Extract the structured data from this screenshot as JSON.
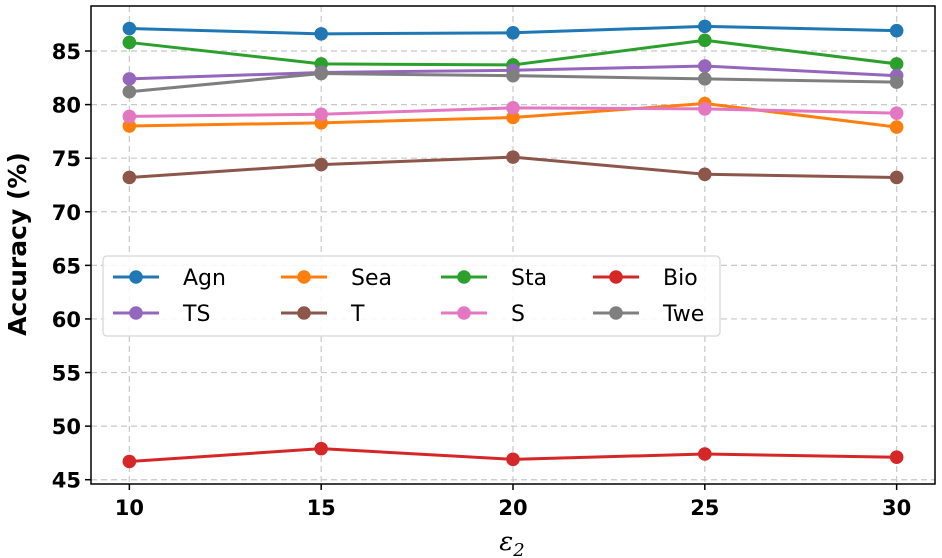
{
  "chart_data": {
    "type": "line",
    "xlabel_main": "ε",
    "xlabel_sub": "2",
    "ylabel": "Accuracy (%)",
    "x": [
      10,
      15,
      20,
      25,
      30
    ],
    "xticks": [
      "10",
      "15",
      "20",
      "25",
      "30"
    ],
    "yticks": [
      "45",
      "50",
      "55",
      "60",
      "65",
      "70",
      "75",
      "80",
      "85"
    ],
    "xlim": [
      9,
      31
    ],
    "ylim": [
      44.6,
      89.2
    ],
    "grid": true,
    "legend_position": "center-left",
    "series": [
      {
        "name": "Agn",
        "color": "#1f77b4",
        "values": [
          87.1,
          86.6,
          86.7,
          87.3,
          86.9
        ]
      },
      {
        "name": "Sea",
        "color": "#ff7f0e",
        "values": [
          78.0,
          78.3,
          78.8,
          80.1,
          77.9
        ]
      },
      {
        "name": "Sta",
        "color": "#2ca02c",
        "values": [
          85.8,
          83.8,
          83.7,
          86.0,
          83.8
        ]
      },
      {
        "name": "Bio",
        "color": "#d62728",
        "values": [
          46.7,
          47.9,
          46.9,
          47.4,
          47.1
        ]
      },
      {
        "name": "TS",
        "color": "#9467bd",
        "values": [
          82.4,
          83.0,
          83.2,
          83.6,
          82.7
        ]
      },
      {
        "name": "T",
        "color": "#8c564b",
        "values": [
          73.2,
          74.4,
          75.1,
          73.5,
          73.2
        ]
      },
      {
        "name": "S",
        "color": "#e377c2",
        "values": [
          78.9,
          79.1,
          79.7,
          79.6,
          79.2
        ]
      },
      {
        "name": "Twe",
        "color": "#7f7f7f",
        "values": [
          81.2,
          82.9,
          82.7,
          82.4,
          82.1
        ]
      }
    ]
  }
}
